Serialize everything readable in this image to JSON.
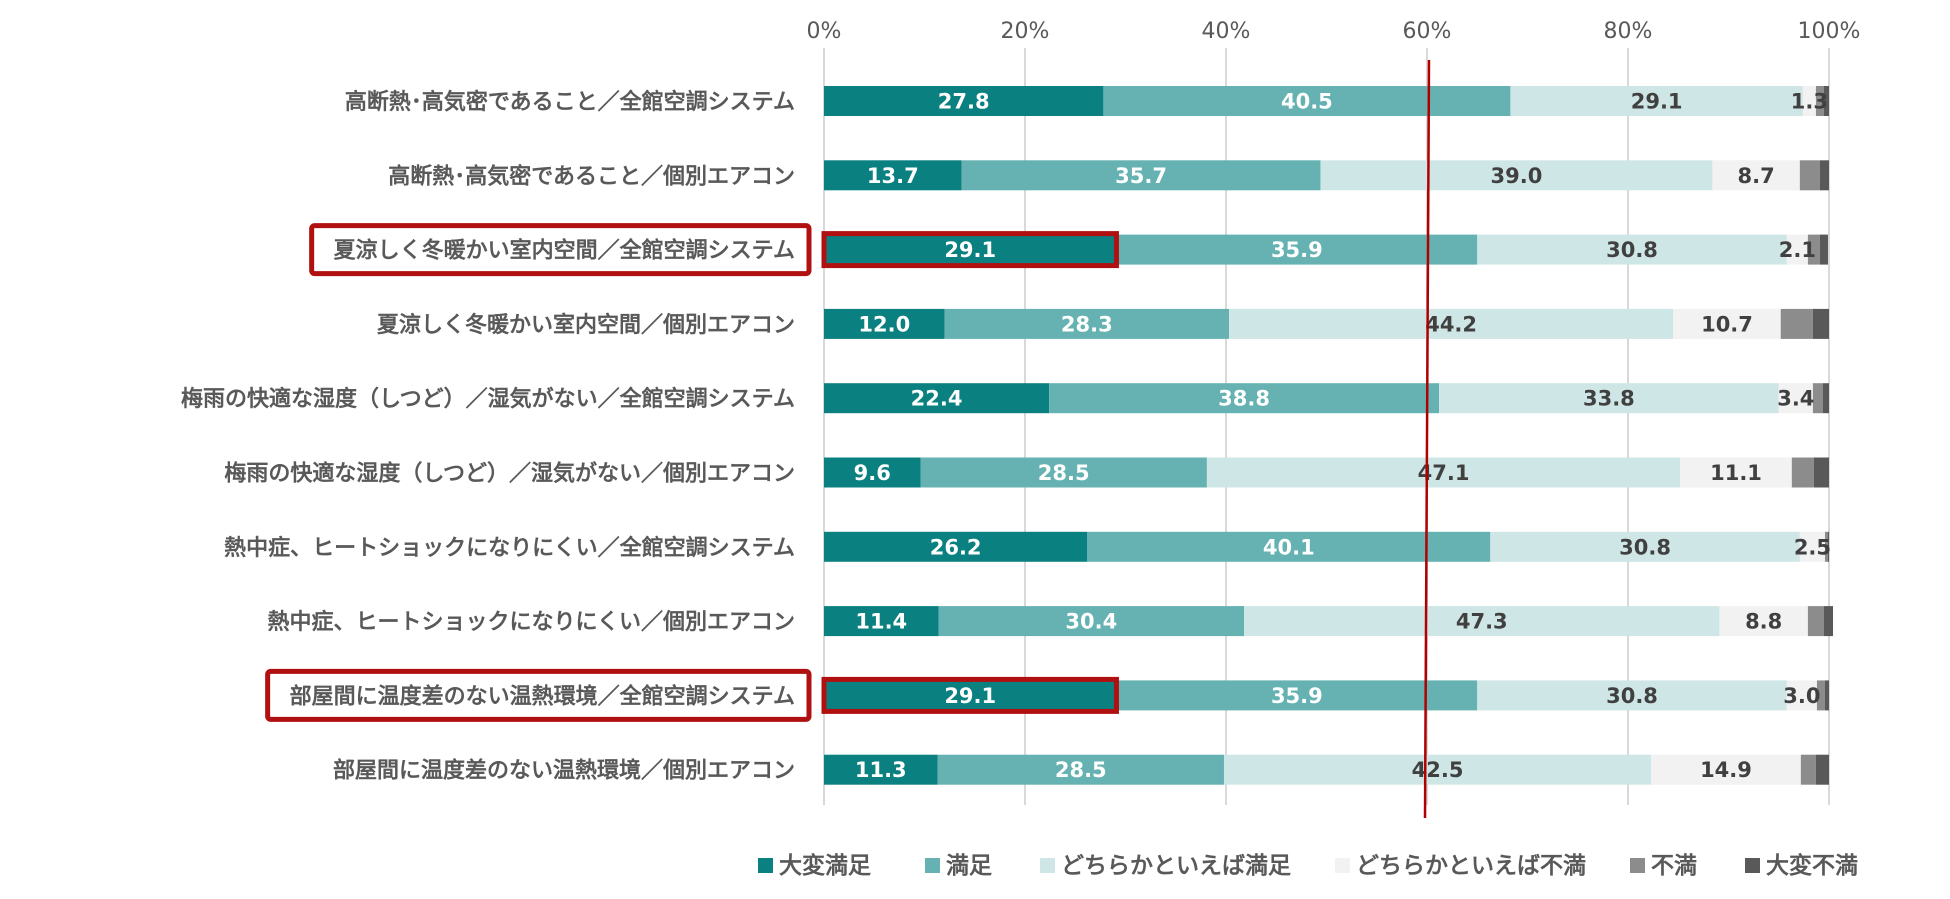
{
  "chart_data": {
    "type": "bar",
    "orientation": "horizontal",
    "stacked": true,
    "percent": true,
    "xlim": [
      0,
      100
    ],
    "x_ticks": [
      "0%",
      "20%",
      "40%",
      "60%",
      "80%",
      "100%"
    ],
    "grid": true,
    "legend_position": "bottom",
    "reference_line": {
      "x": 60,
      "color": "#b00000"
    },
    "categories": [
      "高断熱･高気密であること／全館空調システム",
      "高断熱･高気密であること／個別エアコン",
      "夏涼しく冬暖かい室内空間／全館空調システム",
      "夏涼しく冬暖かい室内空間／個別エアコン",
      "梅雨の快適な湿度（しつど）／湿気がない／全館空調システム",
      "梅雨の快適な湿度（しつど）／湿気がない／個別エアコン",
      "熱中症、ヒートショックになりにくい／全館空調システム",
      "熱中症、ヒートショックになりにくい／個別エアコン",
      "部屋間に温度差のない温熱環境／全館空調システム",
      "部屋間に温度差のない温熱環境／個別エアコン"
    ],
    "highlighted_rows": [
      2,
      8
    ],
    "series": [
      {
        "name": "大変満足",
        "color": "#0b8080",
        "label_color": "#ffffff",
        "values": [
          27.8,
          13.7,
          29.1,
          12.0,
          22.4,
          9.6,
          26.2,
          11.4,
          29.1,
          11.3
        ]
      },
      {
        "name": "満足",
        "color": "#66b2b2",
        "label_color": "#ffffff",
        "values": [
          40.5,
          35.7,
          35.9,
          28.3,
          38.8,
          28.5,
          40.1,
          30.4,
          35.9,
          28.5
        ]
      },
      {
        "name": "どちらかといえば満足",
        "color": "#cfe6e6",
        "label_color": "#404040",
        "values": [
          29.1,
          39.0,
          30.8,
          44.2,
          33.8,
          47.1,
          30.8,
          47.3,
          30.8,
          42.5
        ]
      },
      {
        "name": "どちらかといえば不満",
        "color": "#f2f2f2",
        "label_color": "#404040",
        "values": [
          1.3,
          8.7,
          2.1,
          10.7,
          3.4,
          11.1,
          2.5,
          8.8,
          3.0,
          14.9
        ]
      },
      {
        "name": "不満",
        "color": "#8c8c8c",
        "label_color": "#404040",
        "values": [
          0.8,
          2.0,
          1.2,
          3.2,
          1.0,
          2.2,
          0.3,
          1.6,
          0.8,
          1.5
        ]
      },
      {
        "name": "大変不満",
        "color": "#595959",
        "label_color": "#404040",
        "values": [
          0.5,
          0.9,
          0.8,
          1.6,
          0.6,
          1.5,
          0.1,
          0.9,
          0.4,
          1.3
        ]
      }
    ],
    "labeled_series": [
      0,
      1,
      2,
      3
    ],
    "highlight_color": "#b01010"
  }
}
